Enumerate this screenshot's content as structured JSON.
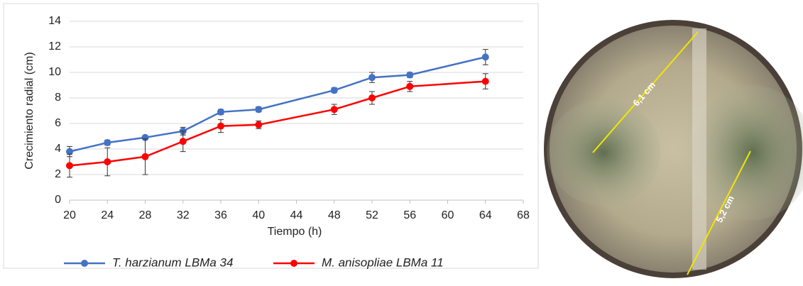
{
  "chart_data": {
    "type": "line",
    "xlabel": "Tiempo (h)",
    "ylabel": "Crecimiento radial (cm)",
    "x": [
      20,
      24,
      28,
      32,
      36,
      40,
      48,
      52,
      56,
      64
    ],
    "series": [
      {
        "name": "T. harzianum LBMa 34",
        "color": "#4472c4",
        "values": [
          3.8,
          4.5,
          4.9,
          5.4,
          6.9,
          7.1,
          8.6,
          9.6,
          9.8,
          11.2
        ],
        "errors": [
          0.4,
          0.2,
          0.1,
          0.3,
          0.2,
          0.2,
          0.2,
          0.4,
          0.2,
          0.6
        ]
      },
      {
        "name": "M. anisopliae LBMa 11",
        "color": "#ff0000",
        "values": [
          2.7,
          3.0,
          3.4,
          4.6,
          5.8,
          5.9,
          7.1,
          8.0,
          8.9,
          9.3
        ],
        "errors": [
          0.9,
          1.1,
          1.4,
          0.8,
          0.5,
          0.3,
          0.4,
          0.5,
          0.4,
          0.6
        ]
      }
    ],
    "xlim": [
      20,
      68
    ],
    "xticks": [
      20,
      24,
      28,
      32,
      36,
      40,
      44,
      48,
      52,
      56,
      60,
      64,
      68
    ],
    "ylim": [
      0,
      14
    ],
    "yticks": [
      0,
      2,
      4,
      6,
      8,
      10,
      12,
      14
    ],
    "grid": true,
    "legend": "bottom"
  },
  "photo": {
    "labels": [
      "6,1 cm",
      "5,2 cm"
    ]
  }
}
